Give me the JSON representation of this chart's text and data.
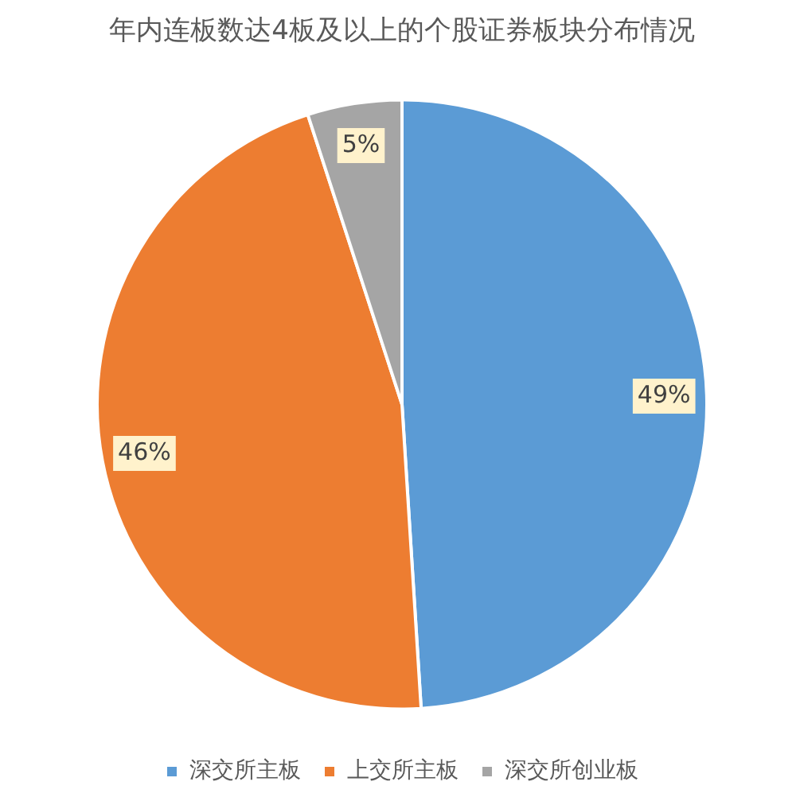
{
  "chart_data": {
    "type": "pie",
    "title": "年内连板数达4板及以上的个股证券板块分布情况",
    "categories": [
      "深交所主板",
      "上交所主板",
      "深交所创业板"
    ],
    "values": [
      49,
      46,
      5
    ],
    "colors": [
      "#5b9bd5",
      "#ed7d31",
      "#a5a5a5"
    ],
    "value_labels": [
      "49%",
      "46%",
      "5%"
    ],
    "legend": "bottom"
  }
}
